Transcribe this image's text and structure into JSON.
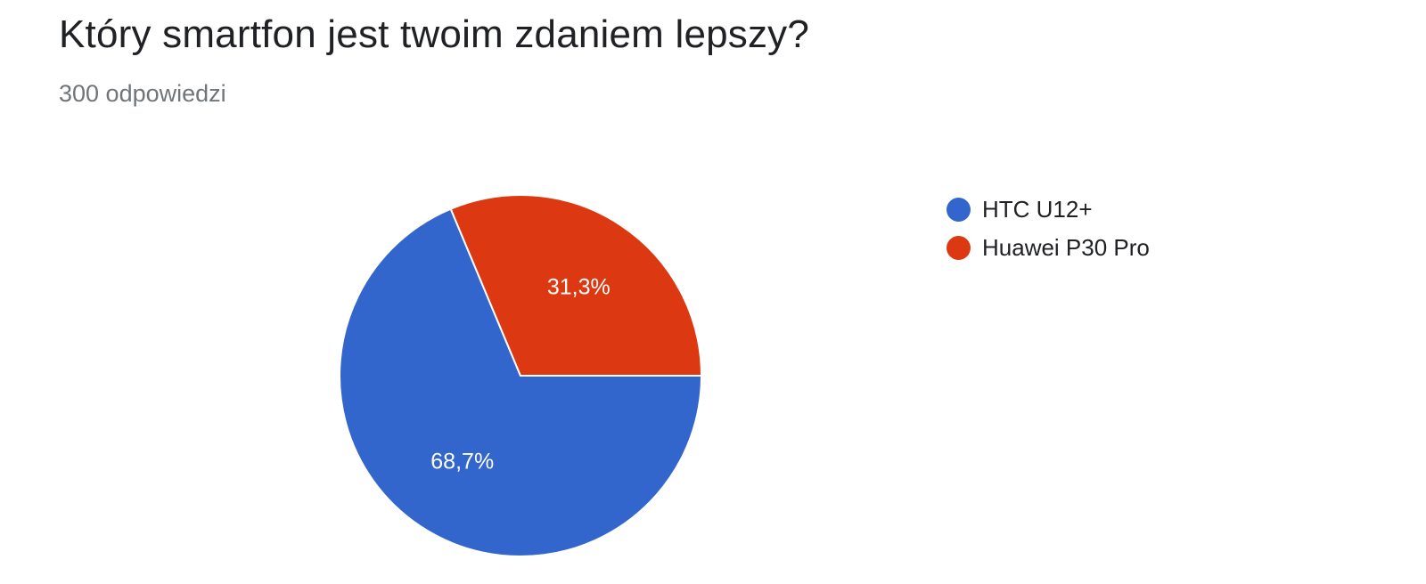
{
  "header": {
    "title": "Który smartfon jest twoim zdaniem lepszy?",
    "response_count": "300 odpowiedzi"
  },
  "chart_data": {
    "type": "pie",
    "categories": [
      "HTC U12+",
      "Huawei P30 Pro"
    ],
    "values": [
      68.7,
      31.3
    ],
    "value_labels": [
      "68,7%",
      "31,3%"
    ],
    "colors": [
      "#3366cc",
      "#dc3912"
    ],
    "legend_position": "right"
  }
}
